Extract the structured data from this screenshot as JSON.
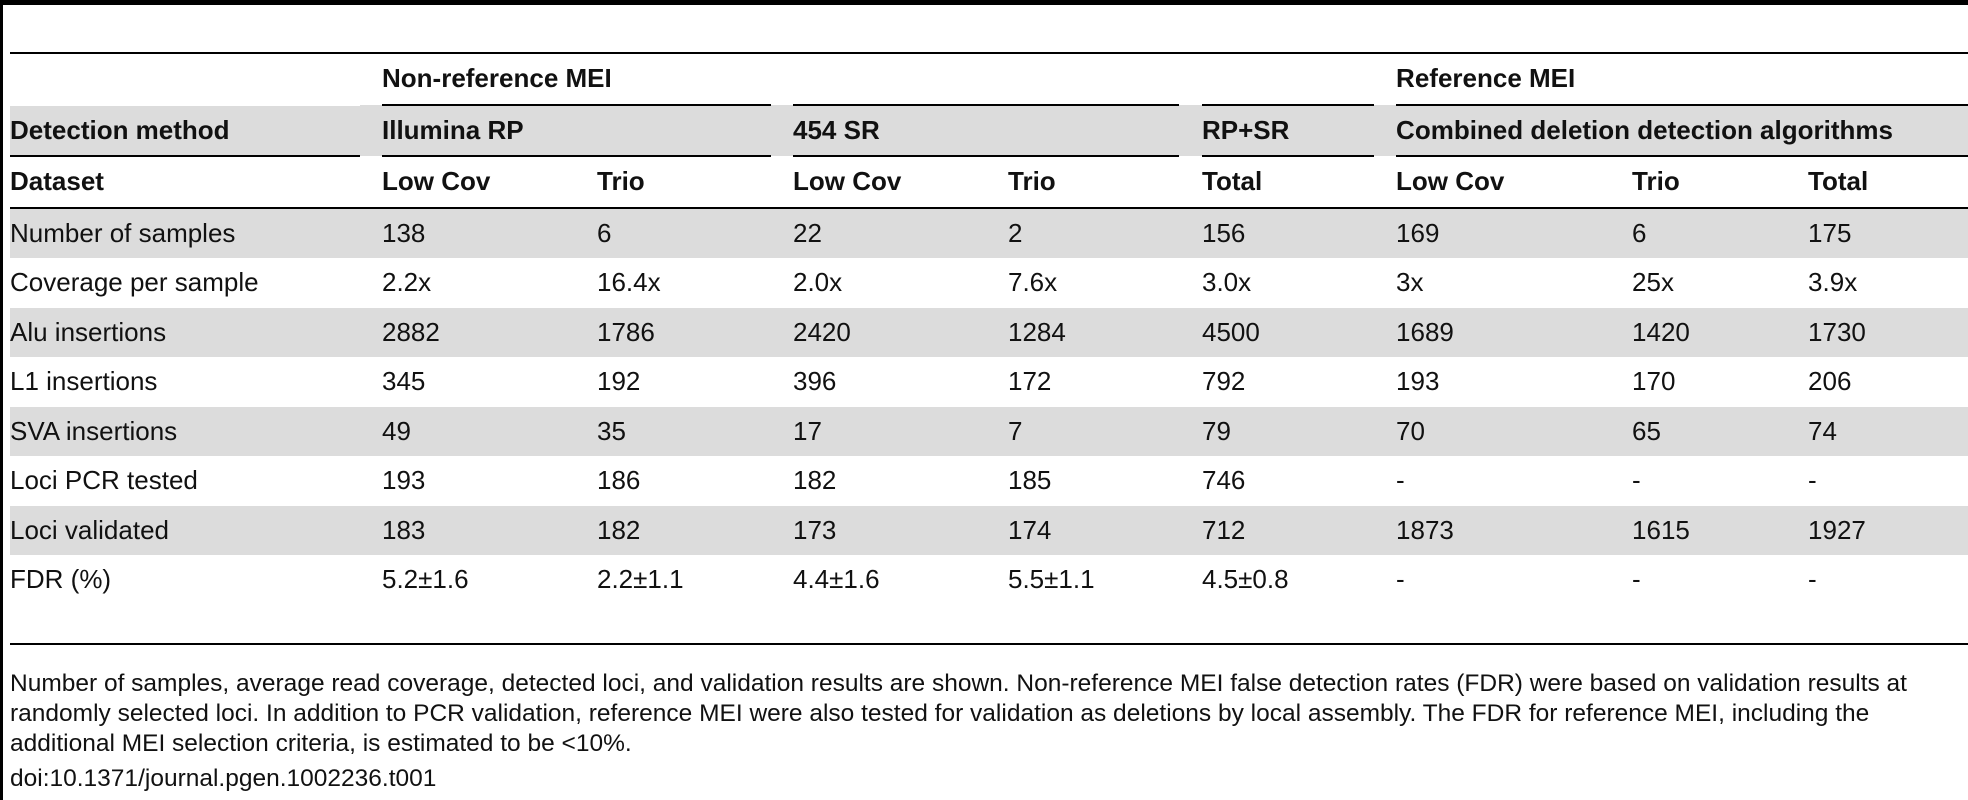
{
  "groups": {
    "nonref": "Non-reference MEI",
    "ref": "Reference MEI"
  },
  "method_row": {
    "label": "Detection method",
    "illumina": "Illumina RP",
    "s454": "454 SR",
    "rpsr": "RP+SR",
    "combined": "Combined deletion detection algorithms"
  },
  "dataset_row": {
    "label": "Dataset",
    "cols": [
      "Low Cov",
      "Trio",
      "Low Cov",
      "Trio",
      "Total",
      "Low Cov",
      "Trio",
      "Total"
    ]
  },
  "rows": [
    {
      "label": "Number of samples",
      "values": [
        "138",
        "6",
        "22",
        "2",
        "156",
        "169",
        "6",
        "175"
      ]
    },
    {
      "label": "Coverage per sample",
      "values": [
        "2.2x",
        "16.4x",
        "2.0x",
        "7.6x",
        "3.0x",
        "3x",
        "25x",
        "3.9x"
      ]
    },
    {
      "label": "Alu insertions",
      "values": [
        "2882",
        "1786",
        "2420",
        "1284",
        "4500",
        "1689",
        "1420",
        "1730"
      ]
    },
    {
      "label": "L1 insertions",
      "values": [
        "345",
        "192",
        "396",
        "172",
        "792",
        "193",
        "170",
        "206"
      ]
    },
    {
      "label": "SVA insertions",
      "values": [
        "49",
        "35",
        "17",
        "7",
        "79",
        "70",
        "65",
        "74"
      ]
    },
    {
      "label": "Loci PCR tested",
      "values": [
        "193",
        "186",
        "182",
        "185",
        "746",
        "-",
        "-",
        "-"
      ]
    },
    {
      "label": "Loci validated",
      "values": [
        "183",
        "182",
        "173",
        "174",
        "712",
        "1873",
        "1615",
        "1927"
      ]
    },
    {
      "label": "FDR (%)",
      "values": [
        "5.2±1.6",
        "2.2±1.1",
        "4.4±1.6",
        "5.5±1.1",
        "4.5±0.8",
        "-",
        "-",
        "-"
      ]
    }
  ],
  "footnote": "Number of samples, average read coverage, detected loci, and validation results are shown. Non-reference MEI false detection rates (FDR) were based on validation results at randomly selected loci. In addition to PCR validation, reference MEI were also tested for validation as deletions by local assembly. The FDR for reference MEI, including the additional MEI selection criteria, is estimated to be <10%.",
  "doi": "doi:10.1371/journal.pgen.1002236.t001"
}
